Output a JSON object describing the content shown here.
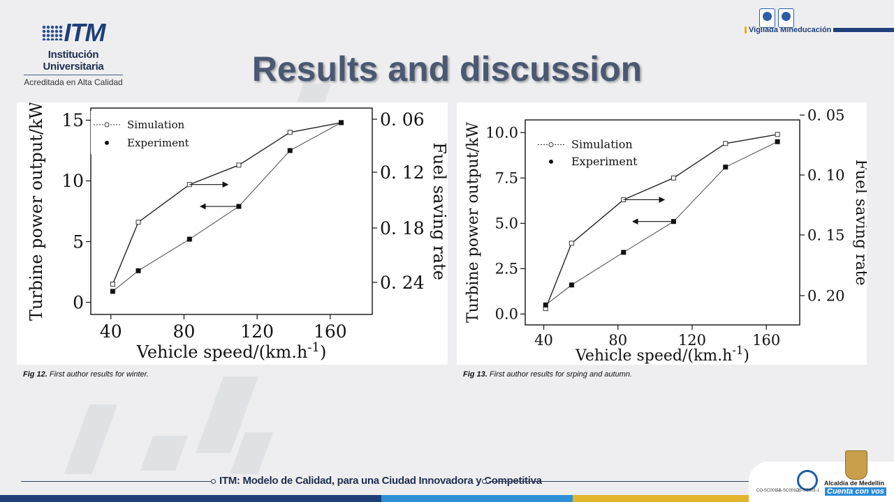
{
  "header": {
    "logo_mark": "ITM",
    "logo_name": "Institución Universitaria",
    "logo_sub": "Acreditada en Alta Calidad",
    "vigilada": "Vigilada Mineducación",
    "title": "Results and discussion"
  },
  "captions": {
    "fig12_label": "Fig 12.",
    "fig12_text": "First author results for winter.",
    "fig13_label": "Fig 13.",
    "fig13_text": "First author results for srping and autumn."
  },
  "footer": {
    "text": "ITM: Modelo de Calidad, para una Ciudad Innovadora y Competitiva",
    "alcaldia": "Alcaldía de Medellín",
    "slogan": "Cuenta con vos",
    "badge_labels": [
      "CO-SC001-1",
      "SA-SC001-1",
      "OS-SC001-1"
    ]
  },
  "colors": {
    "title": "#4a5872",
    "navy": "#1f3f7a",
    "bar_colors": [
      "#1f3f7a",
      "#2d8fd5",
      "#e3b52b"
    ]
  },
  "chart_data": [
    {
      "type": "line",
      "xlabel": "Vehicle speed/(km.h",
      "xlabel_sup": "-1",
      "xlabel_end": ")",
      "ylabel": "Turbine power output/kW",
      "y2label": "Fuel saving rate",
      "xticks": [
        "40",
        "80",
        "120",
        "160"
      ],
      "yticks": [
        "0",
        "5",
        "10",
        "15"
      ],
      "y2ticks": [
        "0. 06",
        "0. 12",
        "0. 18",
        "0. 24"
      ],
      "xlim": [
        29,
        183
      ],
      "ylim": [
        -1,
        16
      ],
      "x": [
        41,
        55,
        83,
        110,
        138,
        166
      ],
      "series": [
        {
          "name": "Simulation",
          "marker": "open-square",
          "values": [
            1.5,
            6.6,
            9.7,
            11.3,
            14.0,
            14.8
          ]
        },
        {
          "name": "Experiment",
          "marker": "filled-square",
          "values": [
            0.9,
            2.6,
            5.2,
            7.9,
            12.5,
            14.8
          ]
        }
      ],
      "arrows": [
        {
          "x_from": 83,
          "x_to": 104,
          "y": 9.7
        },
        {
          "x_from": 110,
          "x_to": 89,
          "y": 7.9
        }
      ],
      "legend_position": "top-left",
      "grid": false
    },
    {
      "type": "line",
      "xlabel": "Vehicle speed/(km.h",
      "xlabel_sup": "-1",
      "xlabel_end": ")",
      "ylabel": "Turbine power output/kW",
      "y2label": "Fuel saving rate",
      "xticks": [
        "40",
        "80",
        "120",
        "160"
      ],
      "yticks": [
        "0.0",
        "2.5",
        "5.0",
        "7.5",
        "10.0"
      ],
      "y2ticks": [
        "0. 05",
        "0. 10",
        "0. 15",
        "0. 20"
      ],
      "xlim": [
        30,
        178
      ],
      "ylim": [
        -0.6,
        10.7
      ],
      "x": [
        41,
        55,
        83,
        110,
        138,
        166
      ],
      "series": [
        {
          "name": "Simulation",
          "marker": "open-square",
          "values": [
            0.3,
            3.9,
            6.3,
            7.5,
            9.4,
            9.9
          ]
        },
        {
          "name": "Experiment",
          "marker": "filled-square",
          "values": [
            0.5,
            1.6,
            3.4,
            5.1,
            8.1,
            9.5
          ]
        }
      ],
      "arrows": [
        {
          "x_from": 83,
          "x_to": 105,
          "y": 6.3
        },
        {
          "x_from": 110,
          "x_to": 88,
          "y": 5.1
        }
      ],
      "legend_position": "top-left",
      "grid": false
    }
  ]
}
